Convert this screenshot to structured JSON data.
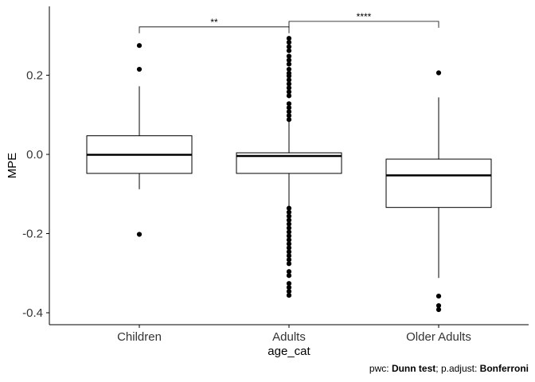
{
  "chart_data": {
    "type": "boxplot",
    "xlabel": "age_cat",
    "ylabel": "MPE",
    "ylim": [
      -0.43,
      0.37
    ],
    "yticks": [
      -0.4,
      -0.2,
      0.0,
      0.2
    ],
    "ytick_labels": [
      "-0.4",
      "-0.2",
      "0.0",
      "0.2"
    ],
    "categories": [
      "Children",
      "Adults",
      "Older Adults"
    ],
    "boxes": [
      {
        "category": "Children",
        "q1": -0.048,
        "median": -0.001,
        "q3": 0.047,
        "whisker_low": -0.088,
        "whisker_high": 0.172,
        "outliers": [
          0.275,
          0.215,
          -0.202
        ]
      },
      {
        "category": "Adults",
        "q1": -0.048,
        "median": -0.004,
        "q3": 0.004,
        "whisker_low": -0.13,
        "whisker_high": 0.084,
        "outliers": [
          0.293,
          0.283,
          0.272,
          0.262,
          0.248,
          0.238,
          0.228,
          0.215,
          0.205,
          0.198,
          0.188,
          0.178,
          0.168,
          0.158,
          0.148,
          0.128,
          0.118,
          0.108,
          0.098,
          0.088,
          -0.136,
          -0.146,
          -0.156,
          -0.166,
          -0.176,
          -0.186,
          -0.196,
          -0.206,
          -0.216,
          -0.226,
          -0.236,
          -0.246,
          -0.256,
          -0.266,
          -0.276,
          -0.296,
          -0.306,
          -0.326,
          -0.336,
          -0.346,
          -0.356
        ]
      },
      {
        "category": "Older Adults",
        "q1": -0.134,
        "median": -0.053,
        "q3": -0.012,
        "whisker_low": -0.312,
        "whisker_high": 0.144,
        "outliers": [
          0.206,
          -0.358,
          -0.382,
          -0.392
        ]
      }
    ],
    "significance": [
      {
        "from": "Children",
        "to": "Adults",
        "label": "**",
        "y": 0.322
      },
      {
        "from": "Adults",
        "to": "Older Adults",
        "label": "****",
        "y": 0.336
      }
    ]
  },
  "caption": {
    "prefix": "pwc: ",
    "test": "Dunn test",
    "middle": "; p.adjust: ",
    "adjust": "Bonferroni"
  }
}
